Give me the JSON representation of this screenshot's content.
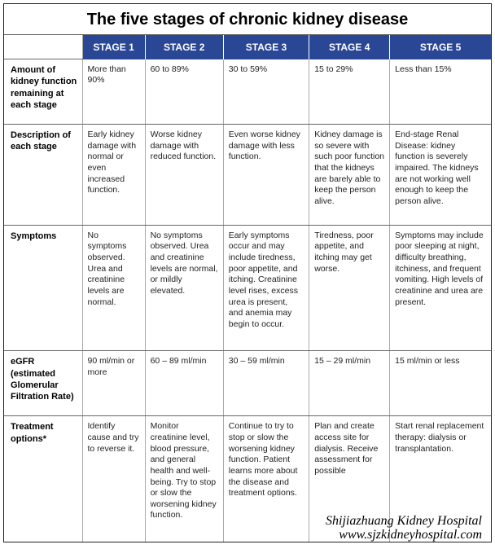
{
  "title": "The five stages of chronic kidney disease",
  "stages": [
    "STAGE 1",
    "STAGE 2",
    "STAGE 3",
    "STAGE 4",
    "STAGE 5"
  ],
  "rows": [
    {
      "label": "Amount of kidney function remaining at each stage",
      "cells": [
        "More than 90%",
        "60 to 89%",
        "30 to 59%",
        "15 to 29%",
        "Less than 15%"
      ]
    },
    {
      "label": "Description of each stage",
      "cells": [
        "Early kidney damage with normal or even increased function.",
        "Worse kidney damage with reduced function.",
        "Even worse kidney damage with less function.",
        "Kidney damage is so severe with such poor function that the kidneys are barely able to keep the person alive.",
        "End-stage Renal Disease: kidney function is severely impaired. The kidneys are not working well enough to keep the person alive."
      ]
    },
    {
      "label": "Symptoms",
      "cells": [
        "No symptoms observed. Urea and creatinine levels are normal.",
        "No symptoms observed. Urea and creatinine levels are normal, or mildly elevated.",
        "Early symptoms occur and may include tiredness, poor appetite, and itching. Creatinine level rises, excess urea is present, and anemia may begin to occur.",
        "Tiredness, poor appetite, and itching may get worse.",
        "Symptoms may include poor sleeping at night, difficulty breathing, itchiness, and frequent vomiting. High levels of creatinine and urea are present."
      ]
    },
    {
      "label": "eGFR (estimated Glomerular Filtration Rate)",
      "cells": [
        "90 ml/min or more",
        "60 – 89 ml/min",
        "30 – 59 ml/min",
        "15 – 29 ml/min",
        "15 ml/min or less"
      ]
    },
    {
      "label": "Treatment options*",
      "cells": [
        "Identify cause and try to reverse it.",
        "Monitor creatinine level, blood pressure, and general health and well-being. Try to stop or slow the worsening kidney function.",
        "Continue to try to stop or slow the worsening kidney function. Patient learns more about the disease and treatment options.",
        "Plan and create access site for dialysis. Receive assessment for possible",
        "Start renal replacement therapy: dialysis or transplantation."
      ]
    }
  ],
  "watermark": {
    "line1": "Shijiazhuang Kidney Hospital",
    "line2": "www.sjzkidneyhospital.com"
  },
  "colors": {
    "header_bg": "#2a4795",
    "header_fg": "#ffffff",
    "border": "#222222",
    "cell_border": "#aaaaaa"
  }
}
